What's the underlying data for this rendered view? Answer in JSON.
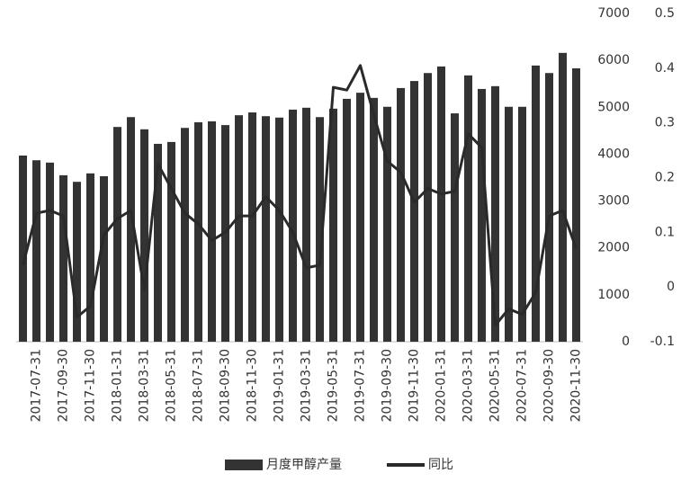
{
  "chart_data": {
    "type": "bar_line",
    "categories": [
      null,
      "2017-07-31",
      null,
      "2017-09-30",
      null,
      "2017-11-30",
      null,
      "2018-01-31",
      null,
      "2018-03-31",
      null,
      "2018-05-31",
      null,
      "2018-07-31",
      null,
      "2018-09-30",
      null,
      "2018-11-30",
      null,
      "2019-01-31",
      null,
      "2019-03-31",
      null,
      "2019-05-31",
      null,
      "2019-07-31",
      null,
      "2019-09-30",
      null,
      "2019-11-30",
      null,
      "2020-01-31",
      null,
      "2020-03-31",
      null,
      "2020-05-31",
      null,
      "2020-07-31",
      null,
      "2020-09-30",
      null,
      "2020-11-30"
    ],
    "series": [
      {
        "name": "月度甲醇产量",
        "type": "bar",
        "color": "#333333",
        "values": [
          3970,
          3870,
          3820,
          3550,
          3410,
          3590,
          3530,
          4580,
          4790,
          4530,
          4220,
          4260,
          4560,
          4680,
          4700,
          4620,
          4830,
          4890,
          4810,
          4780,
          4950,
          4990,
          4790,
          4970,
          5180,
          5310,
          5200,
          5010,
          5410,
          5560,
          5730,
          5870,
          4870,
          5680,
          5390,
          5450,
          5010,
          5010,
          5890,
          5730,
          6160,
          5830
        ]
      },
      {
        "name": "同比",
        "type": "line",
        "axis": "y2",
        "color": "#2a2a2a",
        "values": [
          0.04,
          0.135,
          0.14,
          0.13,
          -0.055,
          -0.035,
          0.095,
          0.125,
          0.14,
          -0.005,
          0.225,
          0.18,
          0.135,
          0.115,
          0.085,
          0.1,
          0.13,
          0.13,
          0.165,
          0.14,
          0.1,
          0.035,
          0.04,
          0.365,
          0.36,
          0.405,
          0.315,
          0.23,
          0.21,
          0.155,
          0.18,
          0.17,
          0.175,
          0.28,
          0.255,
          -0.07,
          -0.04,
          -0.05,
          -0.01,
          0.13,
          0.14,
          0.07
        ]
      }
    ],
    "ylim": [
      0,
      7000
    ],
    "yticks": [
      0,
      1000,
      2000,
      3000,
      4000,
      5000,
      6000,
      7000
    ],
    "y2lim": [
      -0.1,
      0.5
    ],
    "y2ticks": [
      -0.1,
      0,
      0.1,
      0.2,
      0.3,
      0.4,
      0.5
    ],
    "grid": false,
    "legend": "bottom"
  }
}
